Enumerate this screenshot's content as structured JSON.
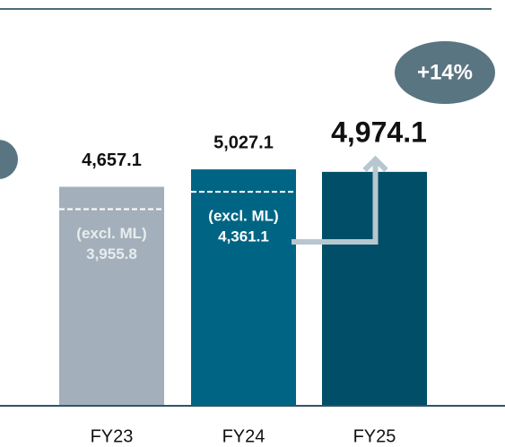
{
  "chart_data": {
    "type": "bar",
    "categories": [
      "FY23",
      "FY24",
      "FY25"
    ],
    "values": [
      4657.1,
      5027.1,
      4974.1
    ],
    "value_labels": [
      "4,657.1",
      "5,027.1",
      "4,974.1"
    ],
    "colors": [
      "#a3b0bb",
      "#006584",
      "#004e68"
    ],
    "ylim": [
      0,
      8000
    ],
    "inner_labels": [
      {
        "title": "(excl. ML)",
        "value": "3,955.8"
      },
      {
        "title": "(excl. ML)",
        "value": "4,361.1"
      }
    ],
    "annotation": "+14%"
  }
}
